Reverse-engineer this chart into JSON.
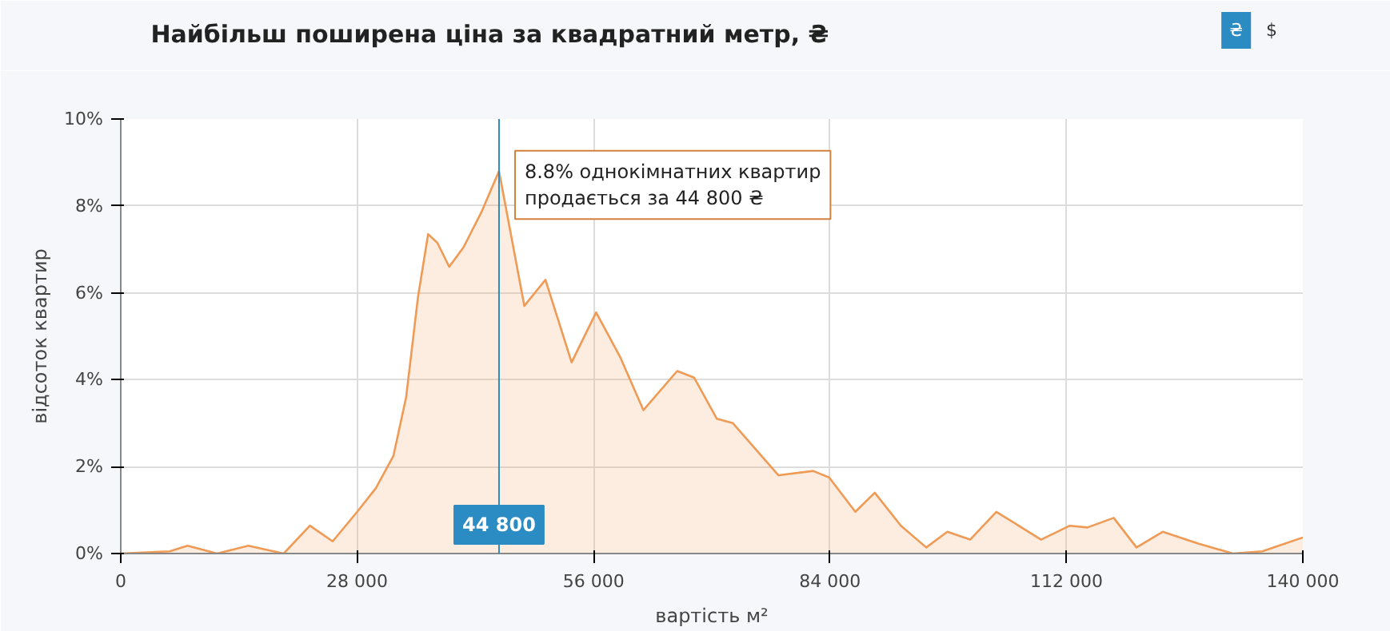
{
  "chart_data": {
    "type": "area",
    "title": "Найбільш поширена ціна за квадратний метр, ₴",
    "xlabel": "вартість м²",
    "ylabel": "відсоток квартир",
    "x": [
      0,
      5800,
      7900,
      11400,
      15100,
      19300,
      22400,
      25100,
      28000,
      30200,
      32300,
      33800,
      35200,
      36400,
      37500,
      38900,
      40600,
      42700,
      44800,
      47800,
      50300,
      53400,
      56300,
      59200,
      61900,
      65900,
      67900,
      70600,
      72500,
      77900,
      82000,
      83900,
      87000,
      89300,
      92400,
      95400,
      97900,
      100600,
      103700,
      109000,
      112400,
      114500,
      117600,
      120300,
      123400,
      127600,
      131700,
      135200,
      140000
    ],
    "series": [
      {
        "color": "#ef9a55",
        "values": [
          0,
          0.05,
          0.18,
          0,
          0.18,
          0,
          0.64,
          0.28,
          0.96,
          1.5,
          2.25,
          3.6,
          5.9,
          7.35,
          7.15,
          6.6,
          7.05,
          7.85,
          8.8,
          5.7,
          6.3,
          4.4,
          5.55,
          4.5,
          3.3,
          4.2,
          4.05,
          3.1,
          3.0,
          1.8,
          1.9,
          1.75,
          0.96,
          1.4,
          0.64,
          0.14,
          0.5,
          0.32,
          0.96,
          0.32,
          0.64,
          0.6,
          0.82,
          0.14,
          0.5,
          0.23,
          0,
          0.05,
          0.37
        ]
      }
    ],
    "xlim": [
      0,
      140000
    ],
    "xticks": [
      {
        "value": 0,
        "label": "0"
      },
      {
        "value": 28000,
        "label": "28 000"
      },
      {
        "value": 56000,
        "label": "56 000"
      },
      {
        "value": 84000,
        "label": "84 000"
      },
      {
        "value": 112000,
        "label": "112 000"
      },
      {
        "value": 140000,
        "label": "140 000"
      }
    ],
    "ylim": [
      0,
      10
    ],
    "yticks": [
      {
        "value": 0,
        "label": "0%"
      },
      {
        "value": 2,
        "label": "2%"
      },
      {
        "value": 4,
        "label": "4%"
      },
      {
        "value": 6,
        "label": "6%"
      },
      {
        "value": 8,
        "label": "8%"
      },
      {
        "value": 10,
        "label": "10%"
      }
    ],
    "grid": true,
    "ref_lines": [
      {
        "axis": "x",
        "value": 44800,
        "label": "44 800",
        "color": "#2b8cc4"
      }
    ],
    "annotations": [
      {
        "text": "8.8% однокімнатних квартир\nпродається за 44 800 ₴",
        "x": 44800,
        "y": 8.8
      },
      "₴",
      "$"
    ]
  }
}
